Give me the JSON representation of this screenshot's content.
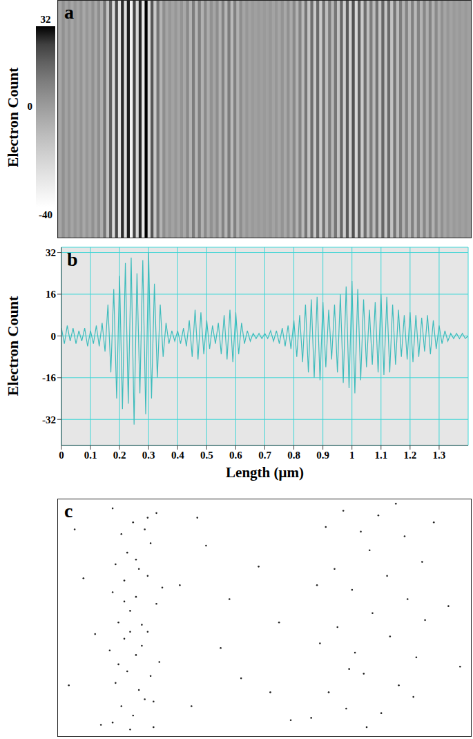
{
  "chart_data": [
    {
      "type": "heatmap",
      "title": "a",
      "tick_labels": false,
      "xlim": [
        0,
        1.4
      ],
      "x": [
        0,
        0.01,
        0.02,
        0.03,
        0.04,
        0.05,
        0.06,
        0.07,
        0.08,
        0.09,
        0.1,
        0.11,
        0.12,
        0.13,
        0.14,
        0.15,
        0.16,
        0.17,
        0.18,
        0.19,
        0.2,
        0.21,
        0.22,
        0.23,
        0.24,
        0.25,
        0.26,
        0.27,
        0.28,
        0.29,
        0.3,
        0.31,
        0.32,
        0.33,
        0.34,
        0.35,
        0.36,
        0.37,
        0.38,
        0.39,
        0.4,
        0.41,
        0.42,
        0.43,
        0.44,
        0.45,
        0.46,
        0.47,
        0.48,
        0.49,
        0.5,
        0.51,
        0.52,
        0.53,
        0.54,
        0.55,
        0.56,
        0.57,
        0.58,
        0.59,
        0.6,
        0.61,
        0.62,
        0.63,
        0.64,
        0.65,
        0.66,
        0.67,
        0.68,
        0.69,
        0.7,
        0.71,
        0.72,
        0.73,
        0.74,
        0.75,
        0.76,
        0.77,
        0.78,
        0.79,
        0.8,
        0.81,
        0.82,
        0.83,
        0.84,
        0.85,
        0.86,
        0.87,
        0.88,
        0.89,
        0.9,
        0.91,
        0.92,
        0.93,
        0.94,
        0.95,
        0.96,
        0.97,
        0.98,
        0.99,
        1,
        1.01,
        1.02,
        1.03,
        1.04,
        1.05,
        1.06,
        1.07,
        1.08,
        1.09,
        1.1,
        1.11,
        1.12,
        1.13,
        1.14,
        1.15,
        1.16,
        1.17,
        1.18,
        1.19,
        1.2,
        1.21,
        1.22,
        1.23,
        1.24,
        1.25,
        1.26,
        1.27,
        1.28,
        1.29,
        1.3,
        1.31,
        1.32,
        1.33,
        1.34,
        1.35,
        1.36,
        1.37,
        1.38,
        1.39,
        1.4
      ],
      "values": [
        3,
        -3,
        4,
        -2,
        3,
        -3,
        2,
        -2,
        3,
        -4,
        2,
        -3,
        4,
        -4,
        5,
        -6,
        12,
        -14,
        18,
        -24,
        23,
        -28,
        28,
        -26,
        30,
        -34,
        24,
        -22,
        29,
        -30,
        32,
        -24,
        20,
        -16,
        12,
        -8,
        5,
        -3,
        2,
        -2,
        2,
        -3,
        3,
        -4,
        6,
        -8,
        10,
        -9,
        9,
        -7,
        6,
        -5,
        4,
        -3,
        5,
        -7,
        8,
        -9,
        10,
        -10,
        9,
        -7,
        5,
        -3,
        2,
        -2,
        1,
        -1,
        1,
        -1,
        1,
        -1,
        2,
        -2,
        2,
        -3,
        3,
        -4,
        4,
        -5,
        6,
        -8,
        8,
        -10,
        12,
        -14,
        14,
        -16,
        15,
        -17,
        13,
        -12,
        10,
        -9,
        12,
        -14,
        16,
        -18,
        19,
        -20,
        21,
        -22,
        18,
        -17,
        14,
        -12,
        10,
        -11,
        13,
        -14,
        16,
        -15,
        15,
        -14,
        12,
        -11,
        10,
        -8,
        8,
        -9,
        9,
        -10,
        8,
        -8,
        7,
        -6,
        8,
        -7,
        6,
        -5,
        4,
        -3,
        2,
        -2,
        1,
        -1,
        1,
        -1,
        1,
        -1,
        0
      ],
      "color_bar": {
        "label": "Electron Count",
        "range": [
          -40,
          32
        ],
        "ticks": [
          32,
          0,
          -40
        ]
      }
    },
    {
      "type": "line",
      "title": "b",
      "color": "#3dbcbc",
      "grid": true,
      "xlabel": "Length (μm)",
      "ylabel": "Electron Count",
      "xlim": [
        0,
        1.4
      ],
      "ylim": [
        -42,
        34
      ],
      "xticks": [
        0,
        0.1,
        0.2,
        0.3,
        0.4,
        0.5,
        0.6,
        0.7,
        0.8,
        0.9,
        1,
        1.1,
        1.2,
        1.3
      ],
      "yticks": [
        -32,
        -16,
        0,
        16,
        32
      ],
      "x": [
        0,
        0.01,
        0.02,
        0.03,
        0.04,
        0.05,
        0.06,
        0.07,
        0.08,
        0.09,
        0.1,
        0.11,
        0.12,
        0.13,
        0.14,
        0.15,
        0.16,
        0.17,
        0.18,
        0.19,
        0.2,
        0.21,
        0.22,
        0.23,
        0.24,
        0.25,
        0.26,
        0.27,
        0.28,
        0.29,
        0.3,
        0.31,
        0.32,
        0.33,
        0.34,
        0.35,
        0.36,
        0.37,
        0.38,
        0.39,
        0.4,
        0.41,
        0.42,
        0.43,
        0.44,
        0.45,
        0.46,
        0.47,
        0.48,
        0.49,
        0.5,
        0.51,
        0.52,
        0.53,
        0.54,
        0.55,
        0.56,
        0.57,
        0.58,
        0.59,
        0.6,
        0.61,
        0.62,
        0.63,
        0.64,
        0.65,
        0.66,
        0.67,
        0.68,
        0.69,
        0.7,
        0.71,
        0.72,
        0.73,
        0.74,
        0.75,
        0.76,
        0.77,
        0.78,
        0.79,
        0.8,
        0.81,
        0.82,
        0.83,
        0.84,
        0.85,
        0.86,
        0.87,
        0.88,
        0.89,
        0.9,
        0.91,
        0.92,
        0.93,
        0.94,
        0.95,
        0.96,
        0.97,
        0.98,
        0.99,
        1,
        1.01,
        1.02,
        1.03,
        1.04,
        1.05,
        1.06,
        1.07,
        1.08,
        1.09,
        1.1,
        1.11,
        1.12,
        1.13,
        1.14,
        1.15,
        1.16,
        1.17,
        1.18,
        1.19,
        1.2,
        1.21,
        1.22,
        1.23,
        1.24,
        1.25,
        1.26,
        1.27,
        1.28,
        1.29,
        1.3,
        1.31,
        1.32,
        1.33,
        1.34,
        1.35,
        1.36,
        1.37,
        1.38,
        1.39,
        1.4
      ],
      "values": [
        3,
        -3,
        4,
        -2,
        3,
        -3,
        2,
        -2,
        3,
        -4,
        2,
        -3,
        4,
        -4,
        5,
        -6,
        12,
        -14,
        18,
        -24,
        23,
        -28,
        28,
        -26,
        30,
        -34,
        24,
        -22,
        29,
        -30,
        32,
        -24,
        20,
        -16,
        12,
        -8,
        5,
        -3,
        2,
        -2,
        2,
        -3,
        3,
        -4,
        6,
        -8,
        10,
        -9,
        9,
        -7,
        6,
        -5,
        4,
        -3,
        5,
        -7,
        8,
        -9,
        10,
        -10,
        9,
        -7,
        5,
        -3,
        2,
        -2,
        1,
        -1,
        1,
        -1,
        1,
        -1,
        2,
        -2,
        2,
        -3,
        3,
        -4,
        4,
        -5,
        6,
        -8,
        8,
        -10,
        12,
        -14,
        14,
        -16,
        15,
        -17,
        13,
        -12,
        10,
        -9,
        12,
        -14,
        16,
        -18,
        19,
        -20,
        21,
        -22,
        18,
        -17,
        14,
        -12,
        10,
        -11,
        13,
        -14,
        16,
        -15,
        15,
        -14,
        12,
        -11,
        10,
        -8,
        8,
        -9,
        9,
        -10,
        8,
        -8,
        7,
        -6,
        8,
        -7,
        6,
        -5,
        4,
        -3,
        2,
        -2,
        1,
        -1,
        1,
        -1,
        1,
        -1,
        0
      ]
    },
    {
      "type": "scatter",
      "title": "c",
      "tick_labels": false,
      "color": "#222222",
      "xlim": [
        0,
        1.4
      ],
      "ylim": [
        0,
        1
      ],
      "x": [
        0.18,
        0.21,
        0.25,
        0.29,
        0.32,
        0.19,
        0.23,
        0.27,
        0.31,
        0.34,
        0.17,
        0.22,
        0.26,
        0.3,
        0.2,
        0.24,
        0.28,
        0.33,
        0.18,
        0.22,
        0.26,
        0.3,
        0.35,
        0.19,
        0.23,
        0.27,
        0.31,
        0.21,
        0.25,
        0.29,
        0.33,
        0.18,
        0.24,
        0.28,
        0.2,
        0.26,
        0.32,
        0.22,
        0.3,
        0.24,
        0.86,
        0.92,
        0.98,
        1.04,
        1.1,
        1.16,
        1.22,
        0.89,
        0.95,
        1.01,
        1.07,
        1.13,
        1.19,
        1.25,
        0.88,
        0.94,
        1,
        1.06,
        1.12,
        1.18,
        1.24,
        0.91,
        0.97,
        1.03,
        1.09,
        1.15,
        1.28,
        0.99,
        1.05,
        1.21,
        0.03,
        0.08,
        0.12,
        0.45,
        0.5,
        0.55,
        0.58,
        0.47,
        0.62,
        0.68,
        0.75,
        0.79,
        1.33,
        1.37,
        0.05,
        0.14,
        0.41,
        0.72
      ],
      "values": [
        0.05,
        0.12,
        0.08,
        0.15,
        0.03,
        0.22,
        0.27,
        0.19,
        0.25,
        0.31,
        0.36,
        0.41,
        0.34,
        0.44,
        0.48,
        0.53,
        0.47,
        0.56,
        0.61,
        0.66,
        0.59,
        0.68,
        0.63,
        0.73,
        0.78,
        0.71,
        0.82,
        0.86,
        0.91,
        0.88,
        0.95,
        0.97,
        0.02,
        0.38,
        0.3,
        0.75,
        0.14,
        0.57,
        0.93,
        0.44,
        0.07,
        0.18,
        0.11,
        0.26,
        0.09,
        0.21,
        0.33,
        0.39,
        0.46,
        0.35,
        0.52,
        0.42,
        0.58,
        0.49,
        0.64,
        0.71,
        0.62,
        0.79,
        0.68,
        0.85,
        0.74,
        0.89,
        0.96,
        0.87,
        0.94,
        0.99,
        0.91,
        0.28,
        0.03,
        0.16,
        0.21,
        0.67,
        0.43,
        0.12,
        0.81,
        0.37,
        0.58,
        0.93,
        0.24,
        0.72,
        0.48,
        0.06,
        0.55,
        0.29,
        0.88,
        0.04,
        0.64,
        0.18
      ]
    }
  ]
}
